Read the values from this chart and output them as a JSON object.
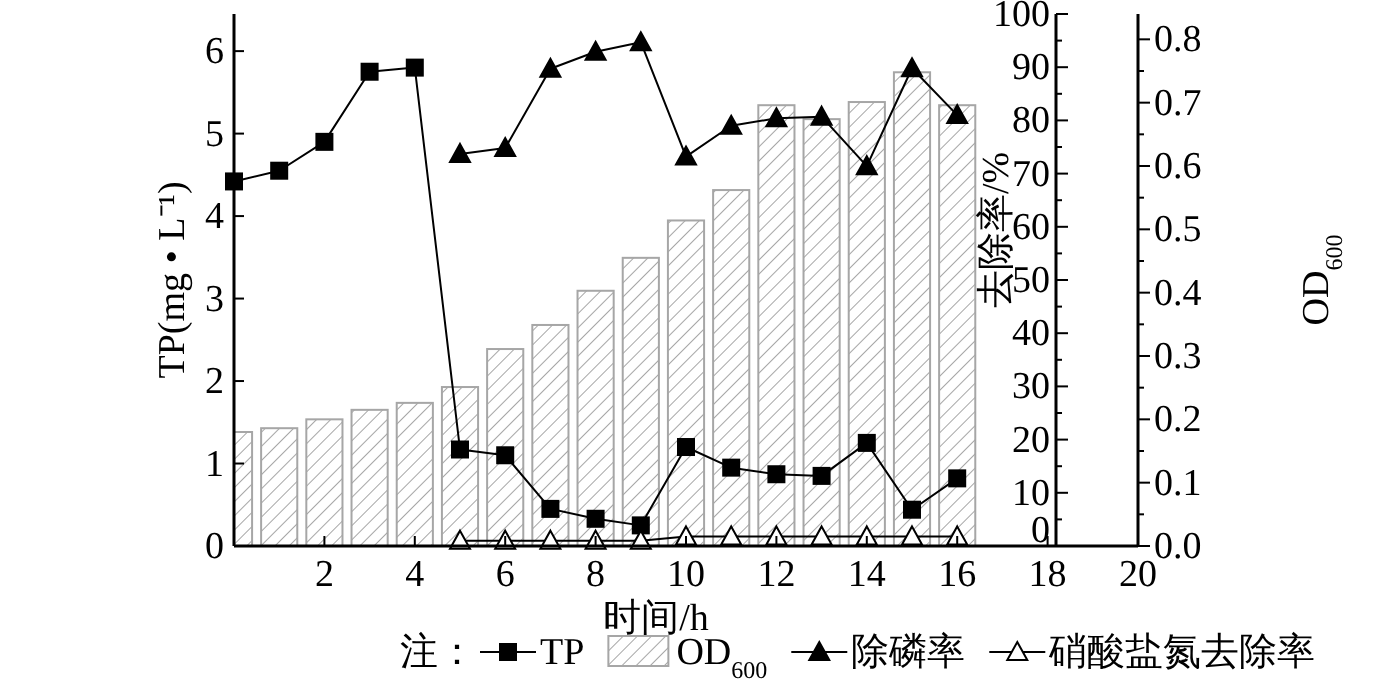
{
  "chart_data": {
    "type": "line",
    "xlabel": "时间/h",
    "ylabel": "TP(mg • L⁻¹)",
    "y2label": "去除率/%",
    "y3label": "OD$_{600}$",
    "legend_title": "注：",
    "legend": "bottom",
    "grid": false,
    "xlim": [
      0,
      20
    ],
    "xticks": [
      2,
      4,
      6,
      8,
      10,
      12,
      14,
      16,
      18,
      20
    ],
    "ylim": [
      0,
      6.45
    ],
    "yticks": [
      0,
      1,
      2,
      3,
      4,
      5,
      6
    ],
    "y2lim": [
      0,
      100
    ],
    "y2ticks": [
      0,
      10,
      20,
      30,
      40,
      50,
      60,
      70,
      80,
      90,
      100
    ],
    "y3lim": [
      0,
      0.84
    ],
    "y3ticks": [
      {
        "value": 0,
        "label": "0.0"
      },
      0.1,
      0.2,
      0.3,
      0.4,
      0.5,
      0.6,
      0.7,
      0.8
    ],
    "series": [
      {
        "name": "TP",
        "axis": "y",
        "marker": "square",
        "color": "#000000",
        "x": [
          0,
          1,
          2,
          3,
          4,
          5,
          6,
          7,
          8,
          9,
          10,
          11,
          12,
          13,
          14,
          15,
          16
        ],
        "values": [
          4.42,
          4.55,
          4.9,
          5.75,
          5.8,
          1.17,
          1.1,
          0.45,
          0.33,
          0.25,
          1.2,
          0.95,
          0.87,
          0.85,
          1.25,
          0.44,
          0.82
        ]
      },
      {
        "name": "OD$_{600}$",
        "type": "bar",
        "axis": "y3",
        "color": "#a6a6a6",
        "x": [
          0,
          1,
          2,
          3,
          4,
          5,
          6,
          7,
          8,
          9,
          10,
          11,
          12,
          13,
          14,
          15,
          16
        ],
        "values": [
          0.18,
          0.186,
          0.2,
          0.215,
          0.226,
          0.251,
          0.311,
          0.349,
          0.403,
          0.455,
          0.514,
          0.562,
          0.696,
          0.674,
          0.701,
          0.748,
          0.696
        ]
      },
      {
        "name": "除磷率",
        "axis": "y2",
        "marker": "triangle",
        "color": "#000000",
        "x": [
          5,
          6,
          7,
          8,
          9,
          10,
          11,
          12,
          13,
          14,
          15,
          16
        ],
        "values": [
          73.7,
          74.8,
          89.7,
          92.9,
          94.7,
          73.2,
          79,
          80.4,
          80.7,
          71.4,
          89.8,
          81
        ]
      },
      {
        "name": "硝酸盐氮去除率",
        "axis": "y2",
        "marker": "triangle",
        "color": "#000000",
        "x": [
          5,
          6,
          7,
          8,
          9,
          10,
          11,
          12,
          13,
          14,
          15,
          16
        ],
        "values": [
          1,
          1,
          1,
          1,
          1,
          1.8,
          1.8,
          1.8,
          1.8,
          1.8,
          1.8,
          1.8
        ]
      }
    ]
  }
}
